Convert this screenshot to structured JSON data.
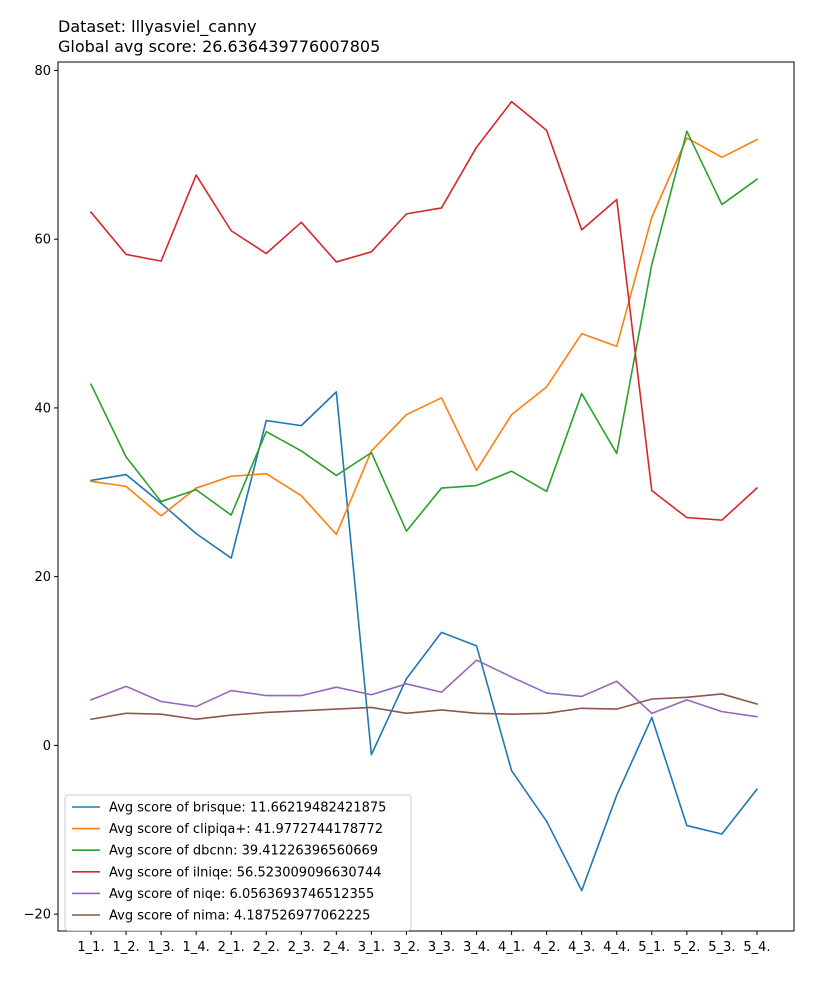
{
  "chart_data": {
    "type": "line",
    "title_lines": [
      "Dataset: lllyasviel_canny",
      "Global avg score: 26.636439776007805"
    ],
    "xlabel": "",
    "ylabel": "",
    "categories": [
      "1_1.",
      "1_2.",
      "1_3.",
      "1_4.",
      "2_1.",
      "2_2.",
      "2_3.",
      "2_4.",
      "3_1.",
      "3_2.",
      "3_3.",
      "3_4.",
      "4_1.",
      "4_2.",
      "4_3.",
      "4_4.",
      "5_1.",
      "5_2.",
      "5_3.",
      "5_4."
    ],
    "ylim": [
      -22,
      81
    ],
    "yticks": [
      -20,
      0,
      20,
      40,
      60,
      80
    ],
    "yticklabels": [
      "−20",
      "0",
      "20",
      "40",
      "60",
      "80"
    ],
    "grid": false,
    "legend_position": "lower-left",
    "series": [
      {
        "name": "Avg score of brisque: 11.66219482421875",
        "color": "#1f77b4",
        "values": [
          31.4,
          32.1,
          28.7,
          25.1,
          22.2,
          38.5,
          37.9,
          41.9,
          -1.1,
          7.9,
          13.4,
          11.8,
          -3.0,
          -9.0,
          -17.2,
          -5.9,
          3.3,
          -9.5,
          -10.5,
          -5.2
        ]
      },
      {
        "name": "Avg score of clipiqa+: 41.9772744178772",
        "color": "#ff7f0e",
        "values": [
          31.3,
          30.7,
          27.2,
          30.5,
          31.9,
          32.2,
          29.6,
          25.0,
          34.9,
          39.2,
          41.2,
          32.6,
          39.2,
          42.5,
          48.8,
          47.3,
          62.6,
          72.0,
          69.7,
          71.8
        ]
      },
      {
        "name": "Avg score of dbcnn: 39.41226396560669",
        "color": "#2ca02c",
        "values": [
          42.8,
          34.2,
          28.9,
          30.3,
          27.3,
          37.2,
          34.9,
          32.0,
          34.7,
          25.4,
          30.5,
          30.8,
          32.5,
          30.1,
          41.7,
          34.6,
          57.0,
          72.8,
          64.1,
          67.1
        ]
      },
      {
        "name": "Avg score of ilniqe: 56.523009096630744",
        "color": "#d62728",
        "values": [
          63.2,
          58.2,
          57.4,
          67.6,
          61.0,
          58.3,
          62.0,
          57.3,
          58.5,
          63.0,
          63.7,
          70.9,
          76.3,
          72.9,
          61.1,
          64.7,
          30.2,
          27.0,
          26.7,
          30.5
        ]
      },
      {
        "name": "Avg score of niqe: 6.0563693746512355",
        "color": "#9467bd",
        "values": [
          5.4,
          7.0,
          5.2,
          4.6,
          6.5,
          5.9,
          5.9,
          6.9,
          6.0,
          7.3,
          6.3,
          10.1,
          8.1,
          6.2,
          5.8,
          7.6,
          3.8,
          5.4,
          4.0,
          3.4
        ]
      },
      {
        "name": "Avg score of nima: 4.187526977062225",
        "color": "#8c564b",
        "values": [
          3.1,
          3.8,
          3.7,
          3.1,
          3.6,
          3.9,
          4.1,
          4.3,
          4.5,
          3.8,
          4.2,
          3.8,
          3.7,
          3.8,
          4.4,
          4.3,
          5.5,
          5.7,
          6.1,
          4.9
        ]
      }
    ]
  }
}
